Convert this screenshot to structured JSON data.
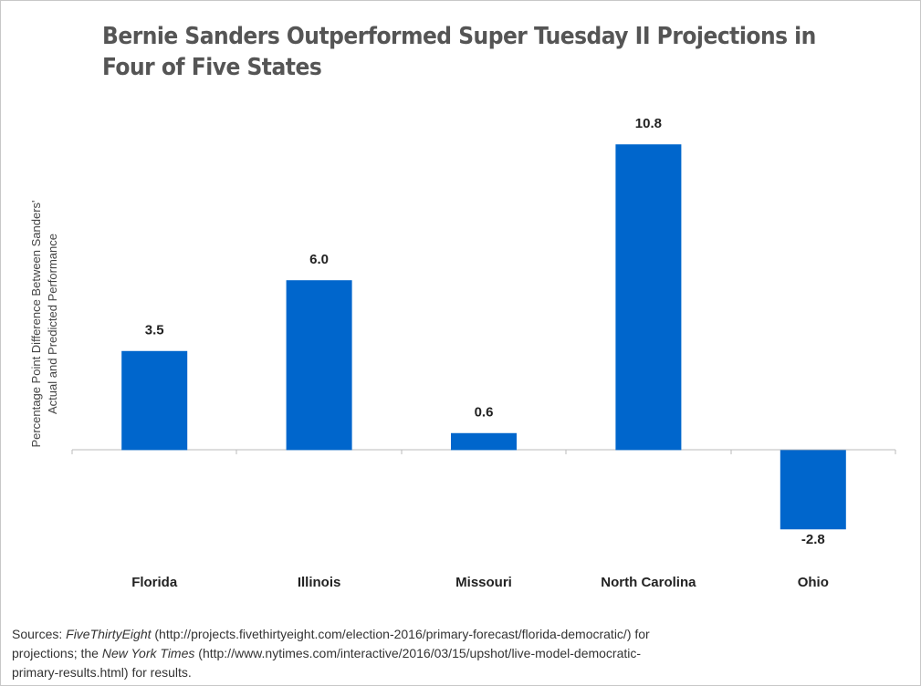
{
  "chart_data": {
    "type": "bar",
    "title": "Bernie Sanders Outperformed Super Tuesday II Projections in Four of Five States",
    "y_label": "Percentage Point Difference Between Sanders' Actual and Predicted Performance",
    "categories": [
      "Florida",
      "Illinois",
      "Missouri",
      "North Carolina",
      "Ohio"
    ],
    "values": [
      3.5,
      6,
      0.6,
      10.8,
      -2.8
    ],
    "value_labels": [
      "3.5",
      "6.0",
      "0.6",
      "10.8",
      "-2.8"
    ],
    "color": "#0066cc",
    "ylim": [
      -3.5,
      12
    ]
  },
  "source": [
    "Sources: ",
    "FiveThirtyEight",
    " (http://projects.fivethirtyeight.com/election-2016/primary-forecast/florida-democratic/) for projections; the ",
    "New York Times",
    " (http://www.nytimes.com/interactive/2016/03/15/upshot/live-model-democratic-primary-results.html) for results."
  ]
}
